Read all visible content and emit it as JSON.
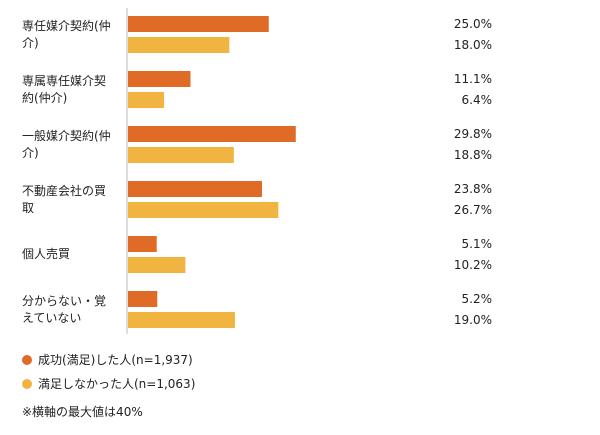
{
  "chart_data": {
    "type": "bar",
    "orientation": "horizontal",
    "categories": [
      "専任媒介契約(仲介)",
      "専属専任媒介契約(仲介)",
      "一般媒介契約(仲介)",
      "不動産会社の買取",
      "個人売買",
      "分からない・覚えていない"
    ],
    "category_label_lines": [
      [
        "専任媒介契約(仲",
        "介)"
      ],
      [
        "専属専任媒介契",
        "約(仲介)"
      ],
      [
        "一般媒介契約(仲",
        "介)"
      ],
      [
        "不動産会社の買",
        "取"
      ],
      [
        "個人売買"
      ],
      [
        "分からない・覚",
        "えていない"
      ]
    ],
    "series": [
      {
        "name": "成功(満足)した人(n=1,937)",
        "color": "#E06B26",
        "values": [
          25.0,
          11.1,
          29.8,
          23.8,
          5.1,
          5.2
        ],
        "value_labels": [
          "25.0%",
          "11.1%",
          "29.8%",
          "23.8%",
          "5.1%",
          "5.2%"
        ]
      },
      {
        "name": "満足しなかった人(n=1,063)",
        "color": "#F2B441",
        "values": [
          18.0,
          6.4,
          18.8,
          26.7,
          10.2,
          19.0
        ],
        "value_labels": [
          "18.0%",
          "6.4%",
          "18.8%",
          "26.7%",
          "10.2%",
          "19.0%"
        ]
      }
    ],
    "xlim": [
      0,
      40
    ],
    "grid": false,
    "legend_position": "bottom-left"
  },
  "note": "※横軸の最大値は40%",
  "colors": {
    "axis": "#bbbbbb"
  }
}
